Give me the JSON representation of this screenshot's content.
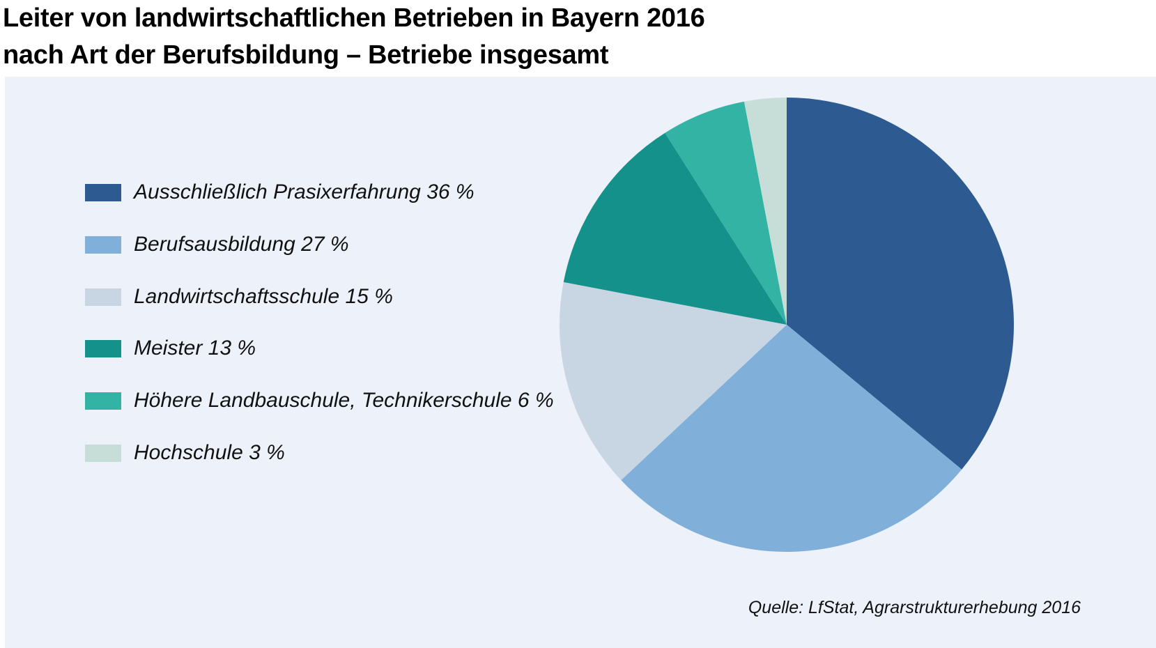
{
  "header": {
    "title_line1": "Leiter von landwirtschaftlichen Betrieben in Bayern 2016",
    "title_line2": "nach Art der Berufsbildung – Betriebe insgesamt"
  },
  "source": "Quelle: LfStat, Agrarstrukturerhebung 2016",
  "legend": [
    {
      "label": "Ausschließlich Prasixerfahrung  36 %",
      "color": "#2d5a91"
    },
    {
      "label": "Berufsausbildung  27 %",
      "color": "#80b0d9"
    },
    {
      "label": "Landwirtschaftsschule  15 %",
      "color": "#c8d5e3"
    },
    {
      "label": "Meister  13 %",
      "color": "#14918a"
    },
    {
      "label": "Höhere Landbauschule, Technikerschule  6 %",
      "color": "#33b3a3"
    },
    {
      "label": "Hochschule  3 %",
      "color": "#c7ddd8"
    }
  ],
  "chart_data": {
    "type": "pie",
    "title": "Leiter von landwirtschaftlichen Betrieben in Bayern 2016 nach Art der Berufsbildung – Betriebe insgesamt",
    "categories": [
      "Ausschließlich Prasixerfahrung",
      "Berufsausbildung",
      "Landwirtschaftsschule",
      "Meister",
      "Höhere Landbauschule, Technikerschule",
      "Hochschule"
    ],
    "values": [
      36,
      27,
      15,
      13,
      6,
      3
    ],
    "unit": "%",
    "colors": [
      "#2d5a91",
      "#80b0d9",
      "#c8d5e3",
      "#14918a",
      "#33b3a3",
      "#c7ddd8"
    ],
    "start": "12 o'clock",
    "direction": "clockwise",
    "legend_position": "left"
  }
}
